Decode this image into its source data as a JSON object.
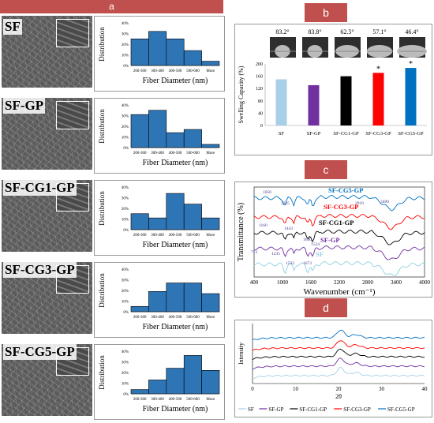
{
  "panels": {
    "a": "a",
    "b": "b",
    "c": "c",
    "d": "d"
  },
  "panel_a": {
    "samples": [
      {
        "label": "SF",
        "values": [
          25,
          32,
          25,
          14,
          4
        ]
      },
      {
        "label": "SF-GP",
        "values": [
          31,
          35,
          14,
          17,
          3
        ]
      },
      {
        "label": "SF-CG1-GP",
        "values": [
          15,
          11,
          34,
          24,
          11
        ]
      },
      {
        "label": "SF-CG3-GP",
        "values": [
          5,
          19,
          27,
          27,
          17
        ]
      },
      {
        "label": "SF-CG5-GP",
        "values": [
          4,
          13,
          24,
          36,
          22
        ]
      }
    ],
    "categories": [
      "200-300",
      "300-400",
      "400-500",
      "500-600",
      "More"
    ],
    "yticks": [
      "0%",
      "10%",
      "20%",
      "30%",
      "40%"
    ],
    "xlabel": "Fiber Diameter (nm)",
    "ylabel": "Distribution",
    "bar_color": "#2e75b6"
  },
  "chart_data": [
    {
      "type": "bar",
      "title": "",
      "categories": [
        "SF",
        "SF-GP",
        "SF-CG1-GP",
        "SF-CG3-GP",
        "SF-CG5-GP"
      ],
      "values": [
        150,
        131,
        160,
        171,
        187
      ],
      "colors": [
        "#a8cfe8",
        "#7030a0",
        "#000000",
        "#ff0000",
        "#0070c0"
      ],
      "significance": [
        "",
        "",
        "",
        "*",
        "*"
      ],
      "contact_angles": [
        "83.2°",
        "83.8°",
        "62.5°",
        "57.1°",
        "46.4°"
      ],
      "ylabel": "Swelling Capacity (%)",
      "yticks": [
        "0",
        "40",
        "80",
        "120",
        "160",
        "200"
      ],
      "ylim": [
        0,
        200
      ]
    },
    {
      "type": "line",
      "xlabel": "Wavenumber (cm⁻¹)",
      "ylabel": "Transmittance (%)",
      "xticks": [
        "400",
        "1000",
        "1600",
        "2200",
        "2800",
        "3400",
        "4000"
      ],
      "xlim": [
        400,
        4000
      ],
      "series": [
        {
          "name": "SF-CG5-GP",
          "color": "#0070c0"
        },
        {
          "name": "SF-CG3-GP",
          "color": "#ff0000"
        },
        {
          "name": "SF-CG1-GP",
          "color": "#000000"
        },
        {
          "name": "SF-GP",
          "color": "#7030a0"
        },
        {
          "name": "SF",
          "color": "#8fd0e0"
        }
      ],
      "annotations": [
        "1050",
        "1265",
        "2910",
        "3400",
        "1160",
        "1443",
        "1640",
        "1524",
        "713",
        "1235",
        "1533",
        "1673"
      ]
    },
    {
      "type": "line",
      "xlabel": "2θ",
      "ylabel": "Intensity",
      "xticks": [
        "0",
        "10",
        "20",
        "30",
        "40"
      ],
      "xlim": [
        0,
        40
      ],
      "series": [
        {
          "name": "SF",
          "color": "#a8cfe8"
        },
        {
          "name": "SF-GP",
          "color": "#7030a0"
        },
        {
          "name": "SF-CG1-GP",
          "color": "#000000"
        },
        {
          "name": "SF-CG3-GP",
          "color": "#ff0000"
        },
        {
          "name": "SF-CG5-GP",
          "color": "#0070c0"
        }
      ]
    }
  ]
}
